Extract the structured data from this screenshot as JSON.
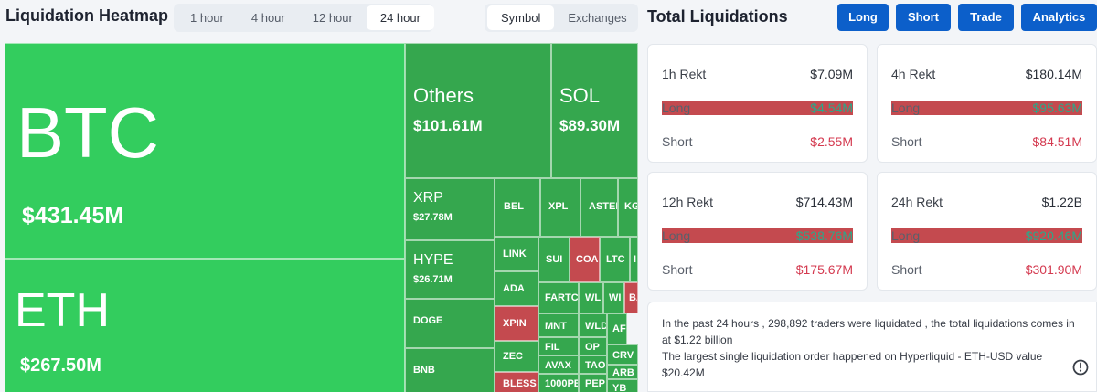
{
  "heatmap": {
    "title": "Liquidation Heatmap",
    "ranges": [
      "1 hour",
      "4 hour",
      "12 hour",
      "24 hour"
    ],
    "active_range": "24 hour",
    "modes": [
      "Symbol",
      "Exchanges"
    ],
    "active_mode": "Symbol",
    "tiles": [
      {
        "symbol": "BTC",
        "value": "$431.45M"
      },
      {
        "symbol": "ETH",
        "value": "$267.50M"
      },
      {
        "symbol": "Others",
        "value": "$101.61M"
      },
      {
        "symbol": "SOL",
        "value": "$89.30M"
      },
      {
        "symbol": "XRP",
        "value": "$27.78M"
      },
      {
        "symbol": "HYPE",
        "value": "$26.71M"
      },
      {
        "symbol": "DOGE",
        "value": ""
      },
      {
        "symbol": "BNB",
        "value": ""
      },
      {
        "symbol": "BEL",
        "value": ""
      },
      {
        "symbol": "XPL",
        "value": ""
      },
      {
        "symbol": "ASTER",
        "value": ""
      },
      {
        "symbol": "KG",
        "value": ""
      },
      {
        "symbol": "LINK",
        "value": ""
      },
      {
        "symbol": "SUI",
        "value": ""
      },
      {
        "symbol": "COAI",
        "value": ""
      },
      {
        "symbol": "LTC",
        "value": ""
      },
      {
        "symbol": "I",
        "value": ""
      },
      {
        "symbol": "ADA",
        "value": ""
      },
      {
        "symbol": "FARTC",
        "value": ""
      },
      {
        "symbol": "WL",
        "value": ""
      },
      {
        "symbol": "WI",
        "value": ""
      },
      {
        "symbol": "BA",
        "value": ""
      },
      {
        "symbol": "XPIN",
        "value": ""
      },
      {
        "symbol": "MNT",
        "value": ""
      },
      {
        "symbol": "WLD",
        "value": ""
      },
      {
        "symbol": "AF",
        "value": ""
      },
      {
        "symbol": "ZEC",
        "value": ""
      },
      {
        "symbol": "FIL",
        "value": ""
      },
      {
        "symbol": "OP",
        "value": ""
      },
      {
        "symbol": "CRV",
        "value": ""
      },
      {
        "symbol": "AVAX",
        "value": ""
      },
      {
        "symbol": "TAO",
        "value": ""
      },
      {
        "symbol": "ARB",
        "value": ""
      },
      {
        "symbol": "BLESS",
        "value": ""
      },
      {
        "symbol": "1000PE",
        "value": ""
      },
      {
        "symbol": "PEP",
        "value": ""
      },
      {
        "symbol": "YB",
        "value": ""
      }
    ]
  },
  "totals": {
    "title": "Total Liquidations",
    "nav": [
      "Long",
      "Short",
      "Trade",
      "Analytics"
    ],
    "cards": [
      {
        "label": "1h Rekt",
        "total": "$7.09M",
        "long_label": "Long",
        "long": "$4.54M",
        "short_label": "Short",
        "short": "$2.55M"
      },
      {
        "label": "4h Rekt",
        "total": "$180.14M",
        "long_label": "Long",
        "long": "$95.63M",
        "short_label": "Short",
        "short": "$84.51M"
      },
      {
        "label": "12h Rekt",
        "total": "$714.43M",
        "long_label": "Long",
        "long": "$538.76M",
        "short_label": "Short",
        "short": "$175.67M"
      },
      {
        "label": "24h Rekt",
        "total": "$1.22B",
        "long_label": "Long",
        "long": "$920.46M",
        "short_label": "Short",
        "short": "$301.90M"
      }
    ],
    "summary_line1": "In the past 24 hours , 298,892 traders were liquidated , the total liquidations comes in at $1.22 billion",
    "summary_line2": "The largest single liquidation order happened on Hyperliquid - ETH-USD value $20.42M"
  },
  "colors": {
    "nav_button": "#0c5fca",
    "long": "#2aa98a",
    "short": "#d4394f",
    "heat_green": "#33cd5e",
    "heat_red": "#c44a4f"
  },
  "icons": {
    "help": "clock-help-icon"
  }
}
